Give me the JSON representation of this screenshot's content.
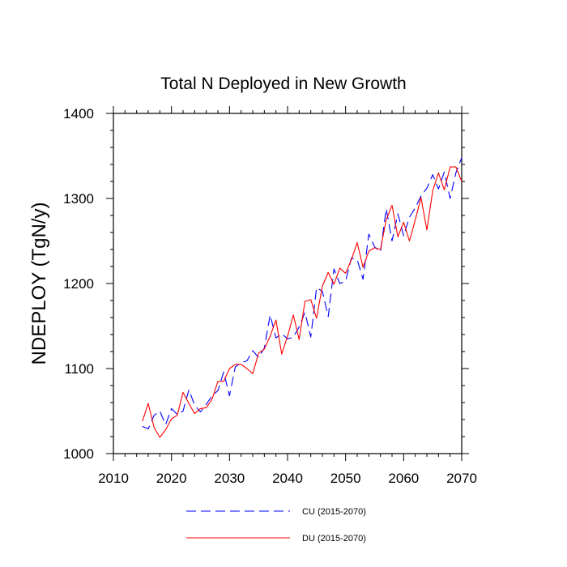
{
  "chart_data": {
    "type": "line",
    "title": "Total N Deployed in New Growth",
    "xlabel": "",
    "ylabel": "NDEPLOY  (TgN/y)",
    "xlim": [
      2010,
      2070
    ],
    "ylim": [
      1000,
      1400
    ],
    "x_ticks": [
      2010,
      2020,
      2030,
      2040,
      2050,
      2060,
      2070
    ],
    "y_ticks": [
      1000,
      1100,
      1200,
      1300,
      1400
    ],
    "x": [
      2015,
      2016,
      2017,
      2018,
      2019,
      2020,
      2021,
      2022,
      2023,
      2024,
      2025,
      2026,
      2027,
      2028,
      2029,
      2030,
      2031,
      2032,
      2033,
      2034,
      2035,
      2036,
      2037,
      2038,
      2039,
      2040,
      2041,
      2042,
      2043,
      2044,
      2045,
      2046,
      2047,
      2048,
      2049,
      2050,
      2051,
      2052,
      2053,
      2054,
      2055,
      2056,
      2057,
      2058,
      2059,
      2060,
      2061,
      2062,
      2063,
      2064,
      2065,
      2066,
      2067,
      2068,
      2069,
      2070
    ],
    "series": [
      {
        "name": "CU (2015-2070)",
        "color": "#0000ff",
        "style": "dashed",
        "values": [
          1032,
          1029,
          1045,
          1050,
          1034,
          1053,
          1046,
          1050,
          1075,
          1057,
          1049,
          1058,
          1068,
          1074,
          1096,
          1068,
          1102,
          1107,
          1109,
          1121,
          1113,
          1124,
          1163,
          1136,
          1141,
          1135,
          1137,
          1149,
          1166,
          1137,
          1195,
          1191,
          1161,
          1217,
          1200,
          1203,
          1230,
          1228,
          1205,
          1258,
          1243,
          1237,
          1288,
          1250,
          1282,
          1256,
          1278,
          1289,
          1303,
          1312,
          1328,
          1311,
          1331,
          1300,
          1330,
          1348
        ]
      },
      {
        "name": "DU (2015-2070)",
        "color": "#ff0000",
        "style": "solid",
        "values": [
          1038,
          1059,
          1031,
          1019,
          1028,
          1041,
          1045,
          1072,
          1059,
          1047,
          1053,
          1054,
          1064,
          1085,
          1085,
          1100,
          1105,
          1105,
          1100,
          1094,
          1118,
          1123,
          1138,
          1157,
          1117,
          1138,
          1163,
          1134,
          1179,
          1181,
          1159,
          1197,
          1213,
          1199,
          1218,
          1212,
          1228,
          1248,
          1219,
          1238,
          1242,
          1240,
          1275,
          1292,
          1255,
          1272,
          1250,
          1275,
          1301,
          1263,
          1309,
          1330,
          1310,
          1337,
          1337,
          1320
        ]
      }
    ],
    "legend": [
      {
        "label": "CU (2015-2070)",
        "color": "#0000ff",
        "style": "dashed"
      },
      {
        "label": "DU (2015-2070)",
        "color": "#ff0000",
        "style": "solid"
      }
    ],
    "legend_position": "bottom"
  }
}
